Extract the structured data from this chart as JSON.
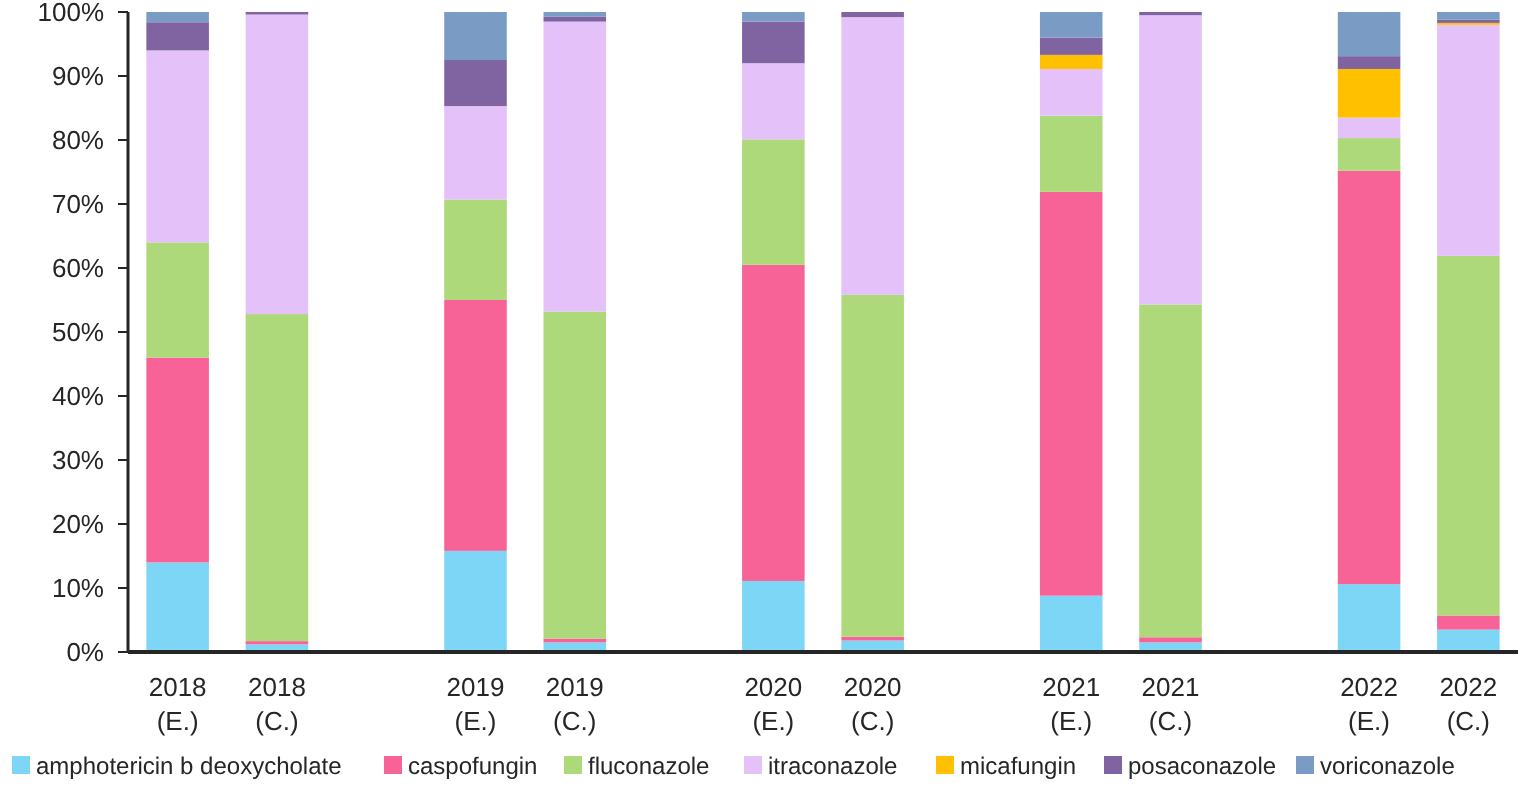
{
  "chart_data": {
    "type": "bar",
    "stacked": true,
    "categories": [
      "2018\n(E.)",
      "2018\n(C.)",
      null,
      "2019\n(E.)",
      "2019\n(C.)",
      null,
      "2020\n(E.)",
      "2020\n(C.)",
      null,
      "2021\n(E.)",
      "2021\n(C.)",
      null,
      "2022\n(E.)",
      "2022\n(C.)"
    ],
    "series": [
      {
        "name": "amphotericin b deoxycholate",
        "color": "#7dd6f5",
        "values": [
          14,
          1.2,
          null,
          15.8,
          1.5,
          null,
          11.1,
          1.8,
          null,
          8.8,
          1.5,
          null,
          10.6,
          3.5
        ]
      },
      {
        "name": "caspofungin",
        "color": "#f76397",
        "values": [
          32,
          0.5,
          null,
          39.2,
          0.6,
          null,
          49.4,
          0.6,
          null,
          63.1,
          0.8,
          null,
          64.6,
          2.2
        ]
      },
      {
        "name": "fluconazole",
        "color": "#add97a",
        "values": [
          18,
          51.1,
          null,
          15.7,
          51.1,
          null,
          19.6,
          53.4,
          null,
          11.9,
          52,
          null,
          5.1,
          56.2
        ]
      },
      {
        "name": "itraconazole",
        "color": "#e5c1fa",
        "values": [
          30,
          46.8,
          null,
          14.6,
          45.3,
          null,
          11.9,
          43.4,
          null,
          7.3,
          45.2,
          null,
          3.2,
          36.1
        ]
      },
      {
        "name": "micafungin",
        "color": "#ffc000",
        "values": [
          0,
          0,
          null,
          0,
          0,
          null,
          0,
          0,
          null,
          2.2,
          0,
          null,
          7.6,
          0.3
        ]
      },
      {
        "name": "posaconazole",
        "color": "#8064a2",
        "values": [
          4.4,
          0.4,
          null,
          7.2,
          0.8,
          null,
          6.5,
          0.8,
          null,
          2.7,
          0.5,
          null,
          2,
          0.5
        ]
      },
      {
        "name": "voriconazole",
        "color": "#7a9cc4",
        "values": [
          1.6,
          0,
          null,
          7.5,
          0.7,
          null,
          1.5,
          0,
          null,
          4,
          0,
          null,
          6.9,
          1.2
        ]
      }
    ],
    "ylim": [
      0,
      100
    ],
    "yticks": [
      {
        "value": 0,
        "label": "0%"
      },
      {
        "value": 10,
        "label": "10%"
      },
      {
        "value": 20,
        "label": "20%"
      },
      {
        "value": 30,
        "label": "30%"
      },
      {
        "value": 40,
        "label": "40%"
      },
      {
        "value": 50,
        "label": "50%"
      },
      {
        "value": 60,
        "label": "60%"
      },
      {
        "value": 70,
        "label": "70%"
      },
      {
        "value": 80,
        "label": "80%"
      },
      {
        "value": 90,
        "label": "90%"
      },
      {
        "value": 100,
        "label": "100%"
      }
    ],
    "grid": false,
    "legend": "bottom"
  }
}
